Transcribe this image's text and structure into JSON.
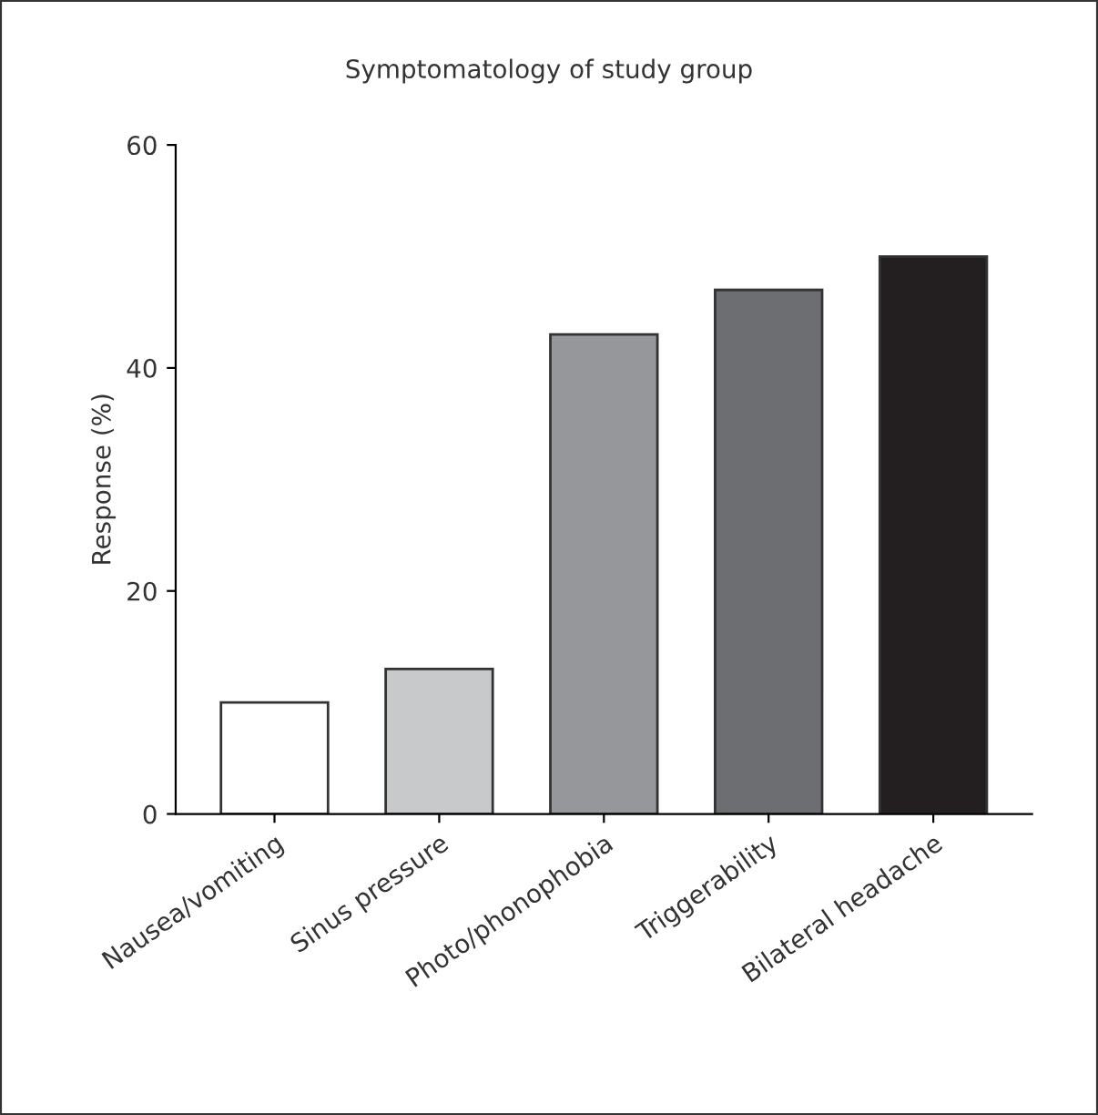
{
  "chart_data": {
    "type": "bar",
    "title": "Symptomatology of study group",
    "ylabel": "Response (%)",
    "categories": [
      "Nausea/vomiting",
      "Sinus pressure",
      "Photo/phonophobia",
      "Triggerability",
      "Bilateral headache"
    ],
    "values": [
      10,
      13,
      43,
      47,
      50
    ],
    "colors": [
      "#ffffff",
      "#c8c9cb",
      "#96979b",
      "#6d6e72",
      "#231f20"
    ],
    "ylim": [
      0,
      60
    ],
    "yticks": [
      0,
      20,
      40,
      60
    ],
    "grid": false
  }
}
